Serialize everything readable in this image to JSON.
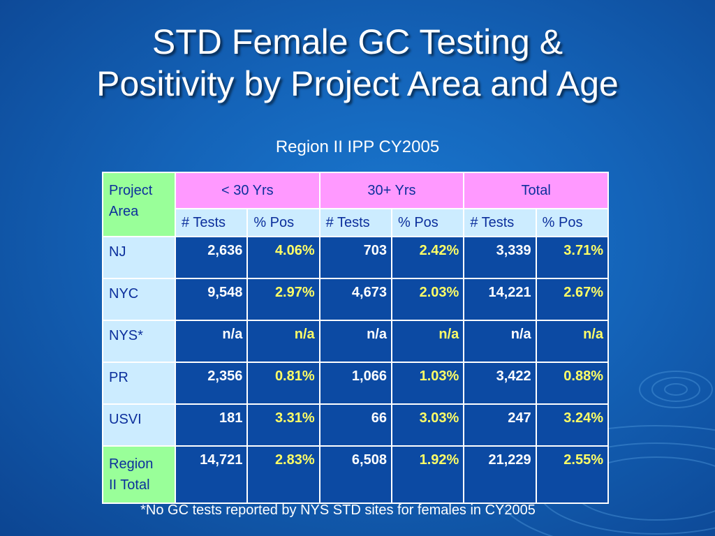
{
  "slide": {
    "title_line1": "STD Female GC Testing &",
    "title_line2": "Positivity by Project Area and Age",
    "subtitle": "Region II IPP CY2005",
    "footnote": "*No GC tests reported by NYS STD sites for females in CY2005"
  },
  "table": {
    "corner_line1": "Project",
    "corner_line2": "Area",
    "groups": [
      "< 30 Yrs",
      "30+ Yrs",
      "Total"
    ],
    "subheaders": [
      "# Tests",
      "% Pos",
      "# Tests",
      "% Pos",
      "# Tests",
      "% Pos"
    ],
    "rows": [
      {
        "area": "NJ",
        "values": [
          "2,636",
          "4.06%",
          "703",
          "2.42%",
          "3,339",
          "3.71%"
        ]
      },
      {
        "area": "NYC",
        "values": [
          "9,548",
          "2.97%",
          "4,673",
          "2.03%",
          "14,221",
          "2.67%"
        ]
      },
      {
        "area": "NYS*",
        "values": [
          "n/a",
          "n/a",
          "n/a",
          "n/a",
          "n/a",
          "n/a"
        ]
      },
      {
        "area": "PR",
        "values": [
          "2,356",
          "0.81%",
          "1,066",
          "1.03%",
          "3,422",
          "0.88%"
        ]
      },
      {
        "area": "USVI",
        "values": [
          "181",
          "3.31%",
          "66",
          "3.03%",
          "247",
          "3.24%"
        ]
      }
    ],
    "total_row": {
      "area_line1": "Region",
      "area_line2": "II Total",
      "values": [
        "14,721",
        "2.83%",
        "6,508",
        "1.92%",
        "21,229",
        "2.55%"
      ]
    }
  },
  "colors": {
    "background": "#1463b8",
    "group_header": "#ff99ff",
    "corner_and_total": "#99ff99",
    "sub_header": "#ccecff",
    "data_cell": "#0c4aa3",
    "pct_text": "#ffff66"
  }
}
